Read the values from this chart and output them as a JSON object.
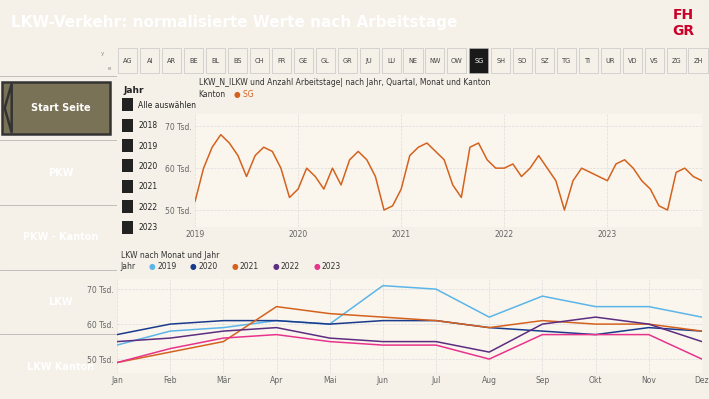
{
  "title": "LKW-Verkehr: normalisierte Werte nach Arbeitstage",
  "fhgr_text": "FH\nGR",
  "title_bg": "#7a7256",
  "title_fg": "#ffffff",
  "nav_bg": "#f5f0e8",
  "sidebar_bg": "#8c8468",
  "sidebar_items": [
    {
      "label": "Start Seite",
      "bg": "#7a7256",
      "fg": "#ffffff",
      "border": true
    },
    {
      "label": "PKW",
      "bg": "#8c8468",
      "fg": "#ffffff",
      "border": false
    },
    {
      "label": "PKW - Kanton",
      "bg": "#8c8468",
      "fg": "#ffffff",
      "border": false
    },
    {
      "label": "LKW",
      "bg": "#000000",
      "fg": "#ffffff",
      "border": false
    },
    {
      "label": "LKW Kanton",
      "bg": "#8c8468",
      "fg": "#ffffff",
      "border": false
    }
  ],
  "cantons": [
    "AG",
    "AI",
    "AR",
    "BE",
    "BL",
    "BS",
    "CH",
    "FR",
    "GE",
    "GL",
    "GR",
    "JU",
    "LU",
    "NE",
    "NW",
    "OW",
    "SG",
    "SH",
    "SO",
    "SZ",
    "TG",
    "TI",
    "UR",
    "VD",
    "VS",
    "ZG",
    "ZH"
  ],
  "active_canton": "SG",
  "year_filter_label": "Jahr",
  "year_filter_items": [
    "Alle auswählen",
    "2018",
    "2019",
    "2020",
    "2021",
    "2022",
    "2023"
  ],
  "chart1_title": "LKW_N_lLKW und Anzahl Arbeitstage| nach Jahr, Quartal, Monat und Kanton",
  "chart1_kanton_label": "Kanton",
  "chart1_kanton_value": "SG",
  "chart1_color": "#d4621e",
  "chart1_ytick_labels": [
    "50 Tsd.",
    "60 Tsd.",
    "70 Tsd."
  ],
  "chart1_yticks": [
    50,
    60,
    70
  ],
  "chart1_xtick_labels": [
    "2019",
    "2020",
    "2021",
    "2022",
    "2023"
  ],
  "chart1_ylim": [
    46,
    73
  ],
  "chart1_data": [
    52,
    60,
    65,
    68,
    66,
    63,
    58,
    63,
    65,
    64,
    60,
    53,
    55,
    60,
    58,
    55,
    60,
    56,
    62,
    64,
    62,
    58,
    50,
    51,
    55,
    63,
    65,
    66,
    64,
    62,
    56,
    53,
    65,
    66,
    62,
    60,
    60,
    61,
    58,
    60,
    63,
    60,
    57,
    50,
    57,
    60,
    59,
    58,
    57,
    61,
    62,
    60,
    57,
    55,
    51,
    50,
    59,
    60,
    58,
    57
  ],
  "chart2_title": "LKW nach Monat und Jahr",
  "chart2_year_label": "Jahr",
  "chart2_years": [
    "2019",
    "2020",
    "2021",
    "2022",
    "2023"
  ],
  "chart2_colors": [
    "#5bb5e8",
    "#1a3a8c",
    "#d4621e",
    "#5c2d80",
    "#e8338c"
  ],
  "chart2_ytick_labels": [
    "50 Tsd.",
    "60 Tsd.",
    "70 Tsd."
  ],
  "chart2_yticks": [
    50,
    60,
    70
  ],
  "chart2_xtick_labels": [
    "Jan",
    "Feb",
    "Mär",
    "Apr",
    "Mai",
    "Jun",
    "Jul",
    "Aug",
    "Sep",
    "Okt",
    "Nov",
    "Dez"
  ],
  "chart2_ylim": [
    46,
    73
  ],
  "chart2_data_2019": [
    54,
    58,
    59,
    61,
    60,
    71,
    70,
    62,
    68,
    65,
    65,
    62
  ],
  "chart2_data_2020": [
    57,
    60,
    61,
    61,
    60,
    61,
    61,
    59,
    58,
    57,
    59,
    58
  ],
  "chart2_data_2021": [
    49,
    52,
    55,
    65,
    63,
    62,
    61,
    59,
    61,
    60,
    60,
    58
  ],
  "chart2_data_2022": [
    55,
    56,
    58,
    59,
    56,
    55,
    55,
    52,
    60,
    62,
    60,
    55
  ],
  "chart2_data_2023": [
    49,
    53,
    56,
    57,
    55,
    54,
    54,
    50,
    57,
    57,
    57,
    50
  ],
  "panel_bg": "#faf6ee",
  "grid_color": "#dddddd",
  "tick_color": "#666666"
}
